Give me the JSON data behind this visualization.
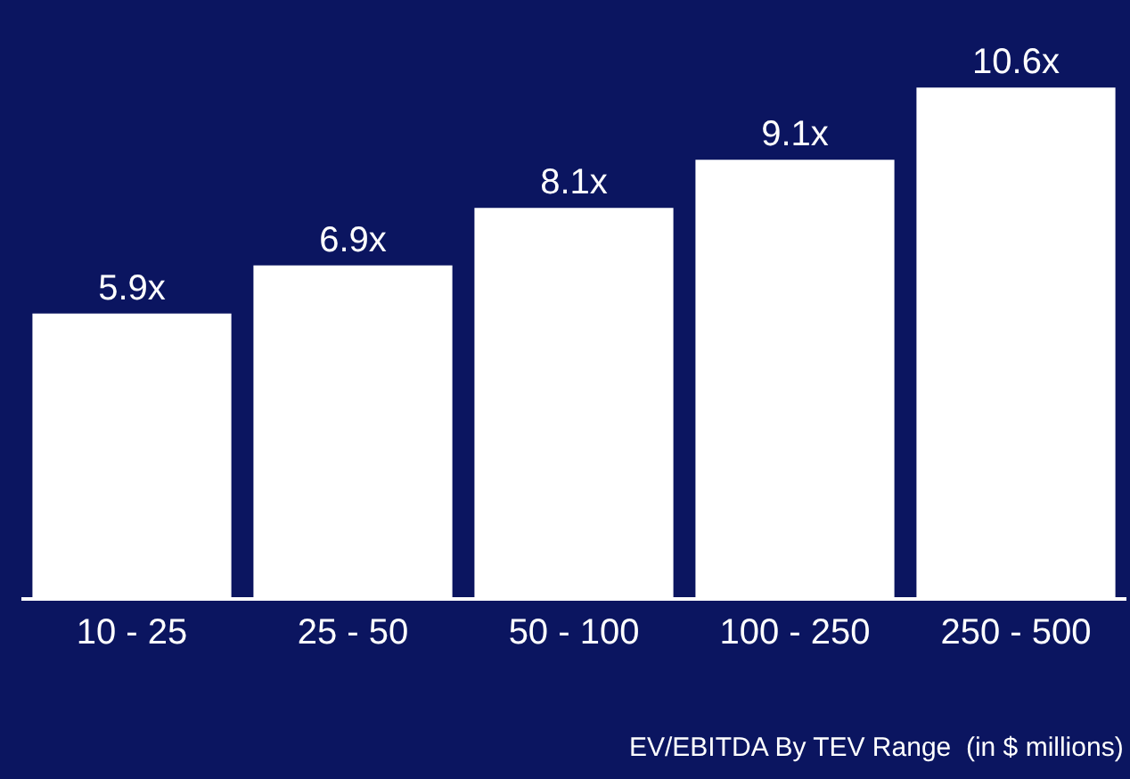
{
  "chart_data": {
    "type": "bar",
    "xlabel": "EV/EBITDA By TEV Range  (in $ millions)",
    "categories": [
      "10 - 25",
      "25 - 50",
      "50 - 100",
      "100 - 250",
      "250 - 500"
    ],
    "values": [
      5.9,
      6.9,
      8.1,
      9.1,
      10.6
    ],
    "value_labels": [
      "5.9x",
      "6.9x",
      "8.1x",
      "9.1x",
      "10.6x"
    ],
    "color": "#ffffff",
    "grid": false,
    "legend": false
  }
}
